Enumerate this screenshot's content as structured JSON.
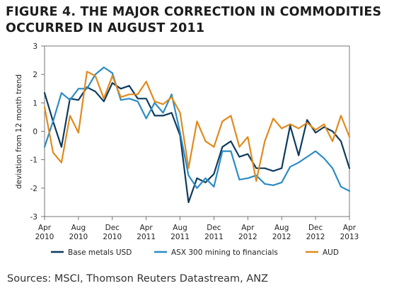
{
  "title_line1": "FIGURE 4. THE MAJOR CORRECTION IN COMMODITIES",
  "title_line2": "OCCURRED IN AUGUST 2011",
  "sources": "Sources: MSCI, Thomson Reuters Datastream, ANZ",
  "chart_data": {
    "type": "line",
    "title": "FIGURE 4. THE MAJOR CORRECTION IN COMMODITIES OCCURRED IN AUGUST 2011",
    "xlabel": "",
    "ylabel": "deviation from 12 month trend",
    "ylim": [
      -3,
      3
    ],
    "yticks": [
      3,
      2,
      1,
      0,
      -1,
      -2,
      -3
    ],
    "xlim": [
      "2010-04",
      "2013-04"
    ],
    "xtick_labels": [
      {
        "month": "Apr",
        "year": "2010",
        "date": "2010-04"
      },
      {
        "month": "Aug",
        "year": "2010",
        "date": "2010-08"
      },
      {
        "month": "Dec",
        "year": "2010",
        "date": "2010-12"
      },
      {
        "month": "Apr",
        "year": "2011",
        "date": "2011-04"
      },
      {
        "month": "Aug",
        "year": "2011",
        "date": "2011-08"
      },
      {
        "month": "Dec",
        "year": "2011",
        "date": "2011-12"
      },
      {
        "month": "Apr",
        "year": "2012",
        "date": "2012-04"
      },
      {
        "month": "Aug",
        "year": "2012",
        "date": "2012-08"
      },
      {
        "month": "Dec",
        "year": "2012",
        "date": "2012-12"
      },
      {
        "month": "Apr",
        "year": "2013",
        "date": "2013-04"
      }
    ],
    "grid": false,
    "legend_position": "bottom",
    "x": [
      "2010-04",
      "2010-05",
      "2010-06",
      "2010-07",
      "2010-08",
      "2010-09",
      "2010-10",
      "2010-11",
      "2010-12",
      "2011-01",
      "2011-02",
      "2011-03",
      "2011-04",
      "2011-05",
      "2011-06",
      "2011-07",
      "2011-08",
      "2011-09",
      "2011-10",
      "2011-11",
      "2011-12",
      "2012-01",
      "2012-02",
      "2012-03",
      "2012-04",
      "2012-05",
      "2012-06",
      "2012-07",
      "2012-08",
      "2012-09",
      "2012-10",
      "2012-11",
      "2012-12",
      "2013-01",
      "2013-02",
      "2013-03",
      "2013-04"
    ],
    "series": [
      {
        "name": "Base metals USD",
        "color": "#0d3b5e",
        "values": [
          1.35,
          0.35,
          -0.55,
          1.15,
          1.1,
          1.55,
          1.4,
          1.05,
          1.7,
          1.5,
          1.6,
          1.15,
          1.15,
          0.55,
          0.55,
          0.65,
          -0.15,
          -2.5,
          -1.65,
          -1.8,
          -1.5,
          -0.55,
          -0.35,
          -0.9,
          -0.8,
          -1.3,
          -1.3,
          -1.4,
          -1.3,
          0.2,
          -0.85,
          0.4,
          -0.05,
          0.15,
          0.0,
          -0.35,
          -1.3
        ]
      },
      {
        "name": "ASX 300 mining to financials",
        "color": "#2b8cc4",
        "values": [
          -0.55,
          0.35,
          1.35,
          1.1,
          1.5,
          1.5,
          2.0,
          2.25,
          2.05,
          1.1,
          1.15,
          1.05,
          0.45,
          1.0,
          0.65,
          1.3,
          -0.05,
          -1.55,
          -2.0,
          -1.65,
          -1.95,
          -0.7,
          -0.7,
          -1.7,
          -1.65,
          -1.55,
          -1.85,
          -1.9,
          -1.8,
          -1.25,
          -1.1,
          -0.9,
          -0.7,
          -0.95,
          -1.3,
          -1.95,
          -2.1
        ]
      },
      {
        "name": "AUD",
        "color": "#e08a1e",
        "values": [
          0.85,
          -0.75,
          -1.1,
          0.55,
          -0.05,
          2.1,
          1.95,
          1.15,
          1.95,
          1.2,
          1.3,
          1.3,
          1.75,
          1.05,
          0.95,
          1.2,
          0.65,
          -1.3,
          0.35,
          -0.35,
          -0.55,
          0.35,
          0.55,
          -0.55,
          -0.2,
          -1.75,
          -0.35,
          0.45,
          0.1,
          0.25,
          0.1,
          0.3,
          0.05,
          0.25,
          -0.35,
          0.55,
          -0.2
        ]
      }
    ]
  }
}
